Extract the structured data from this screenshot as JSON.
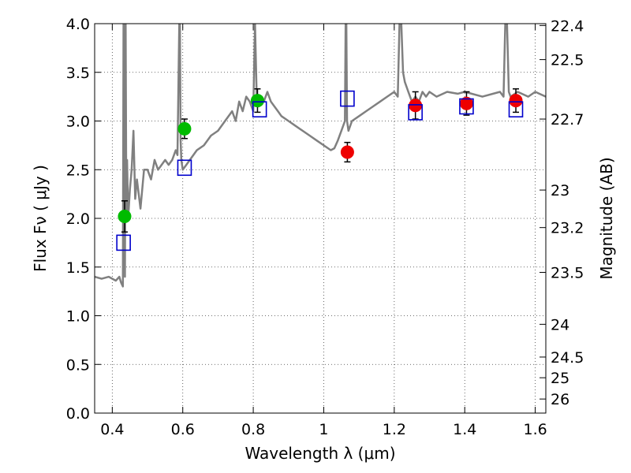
{
  "chart_data": {
    "type": "scatter",
    "title": "",
    "xlabel": "Wavelength  λ (μm)",
    "ylabel": "Flux  Fν  ( μJy )",
    "y2label": "Magnitude (AB)",
    "xlim": [
      0.35,
      1.63
    ],
    "ylim": [
      0.0,
      4.0
    ],
    "grid": true,
    "x_ticks": [
      0.4,
      0.6,
      0.8,
      1.0,
      1.2,
      1.4,
      1.6
    ],
    "x_tick_labels": [
      "0.4",
      "0.6",
      "0.8",
      "1",
      "1.2",
      "1.4",
      "1.6"
    ],
    "y_ticks": [
      0.0,
      0.5,
      1.0,
      1.5,
      2.0,
      2.5,
      3.0,
      3.5,
      4.0
    ],
    "y_tick_labels": [
      "0.0",
      "0.5",
      "1.0",
      "1.5",
      "2.0",
      "2.5",
      "3.0",
      "3.5",
      "4.0"
    ],
    "y2_ticks": [
      22.4,
      22.5,
      22.7,
      23,
      23.2,
      23.5,
      24,
      24.5,
      25,
      26
    ],
    "y2_tick_labels": [
      "22.4",
      "22.5",
      "22.7",
      "23",
      "23.2",
      "23.5",
      "24",
      "24.5",
      "25",
      "26"
    ],
    "colors": {
      "model": "#808080",
      "green": "#00bb00",
      "red": "#ee0000",
      "blue_square": "#0000cc",
      "errorbar": "#000000"
    },
    "series": [
      {
        "kind": "line",
        "x": [
          0.35,
          0.37,
          0.39,
          0.41,
          0.42,
          0.425,
          0.43,
          0.432,
          0.435,
          0.436,
          0.438,
          0.44,
          0.442,
          0.445,
          0.45,
          0.455,
          0.46,
          0.465,
          0.47,
          0.48,
          0.49,
          0.5,
          0.51,
          0.52,
          0.53,
          0.54,
          0.55,
          0.56,
          0.57,
          0.58,
          0.585,
          0.59,
          0.592,
          0.594,
          0.596,
          0.6,
          0.61,
          0.62,
          0.64,
          0.66,
          0.68,
          0.7,
          0.72,
          0.74,
          0.75,
          0.76,
          0.77,
          0.78,
          0.79,
          0.8,
          0.805,
          0.81,
          0.815,
          0.82,
          0.83,
          0.84,
          0.85,
          0.86,
          0.87,
          0.88,
          0.9,
          0.92,
          0.94,
          0.96,
          0.98,
          1.0,
          1.02,
          1.03,
          1.04,
          1.05,
          1.06,
          1.062,
          1.064,
          1.066,
          1.07,
          1.08,
          1.1,
          1.12,
          1.14,
          1.16,
          1.18,
          1.2,
          1.21,
          1.215,
          1.22,
          1.225,
          1.23,
          1.24,
          1.25,
          1.26,
          1.27,
          1.28,
          1.29,
          1.3,
          1.32,
          1.35,
          1.38,
          1.4,
          1.45,
          1.5,
          1.51,
          1.515,
          1.52,
          1.525,
          1.53,
          1.55,
          1.58,
          1.6,
          1.63
        ],
        "y": [
          1.4,
          1.38,
          1.4,
          1.36,
          1.4,
          1.34,
          1.3,
          4.0,
          4.0,
          1.4,
          4.0,
          2.0,
          2.6,
          2.0,
          2.3,
          2.5,
          2.9,
          2.2,
          2.4,
          2.1,
          2.5,
          2.5,
          2.4,
          2.6,
          2.5,
          2.55,
          2.6,
          2.55,
          2.6,
          2.7,
          2.65,
          4.0,
          4.0,
          2.8,
          2.6,
          2.5,
          2.55,
          2.6,
          2.7,
          2.75,
          2.85,
          2.9,
          3.0,
          3.1,
          3.0,
          3.2,
          3.1,
          3.25,
          3.2,
          3.1,
          4.0,
          3.2,
          3.15,
          3.25,
          3.2,
          3.3,
          3.2,
          3.15,
          3.1,
          3.05,
          3.0,
          2.95,
          2.9,
          2.85,
          2.8,
          2.75,
          2.7,
          2.72,
          2.8,
          2.9,
          3.0,
          4.0,
          4.0,
          3.0,
          2.9,
          3.0,
          3.05,
          3.1,
          3.15,
          3.2,
          3.25,
          3.3,
          3.25,
          4.0,
          4.0,
          3.5,
          3.4,
          3.3,
          3.2,
          3.25,
          3.2,
          3.3,
          3.25,
          3.3,
          3.25,
          3.3,
          3.28,
          3.3,
          3.25,
          3.3,
          3.25,
          4.0,
          4.0,
          3.3,
          3.25,
          3.3,
          3.25,
          3.3,
          3.25
        ],
        "name": ""
      },
      {
        "kind": "scatter",
        "marker": "circle",
        "color": "green",
        "x": [
          0.435,
          0.605,
          0.812
        ],
        "y": [
          2.02,
          2.92,
          3.21
        ],
        "yerr": [
          0.16,
          0.1,
          0.12
        ],
        "name": ""
      },
      {
        "kind": "scatter",
        "marker": "circle",
        "color": "red",
        "x": [
          1.067,
          1.26,
          1.405,
          1.545
        ],
        "y": [
          2.68,
          3.16,
          3.18,
          3.21
        ],
        "yerr": [
          0.1,
          0.14,
          0.12,
          0.12
        ],
        "name": ""
      },
      {
        "kind": "scatter",
        "marker": "square",
        "color": "blue_square",
        "x": [
          0.432,
          0.605,
          0.818,
          1.067,
          1.26,
          1.405,
          1.545
        ],
        "y": [
          1.75,
          2.52,
          3.12,
          3.23,
          3.09,
          3.15,
          3.12
        ],
        "name": ""
      }
    ]
  }
}
